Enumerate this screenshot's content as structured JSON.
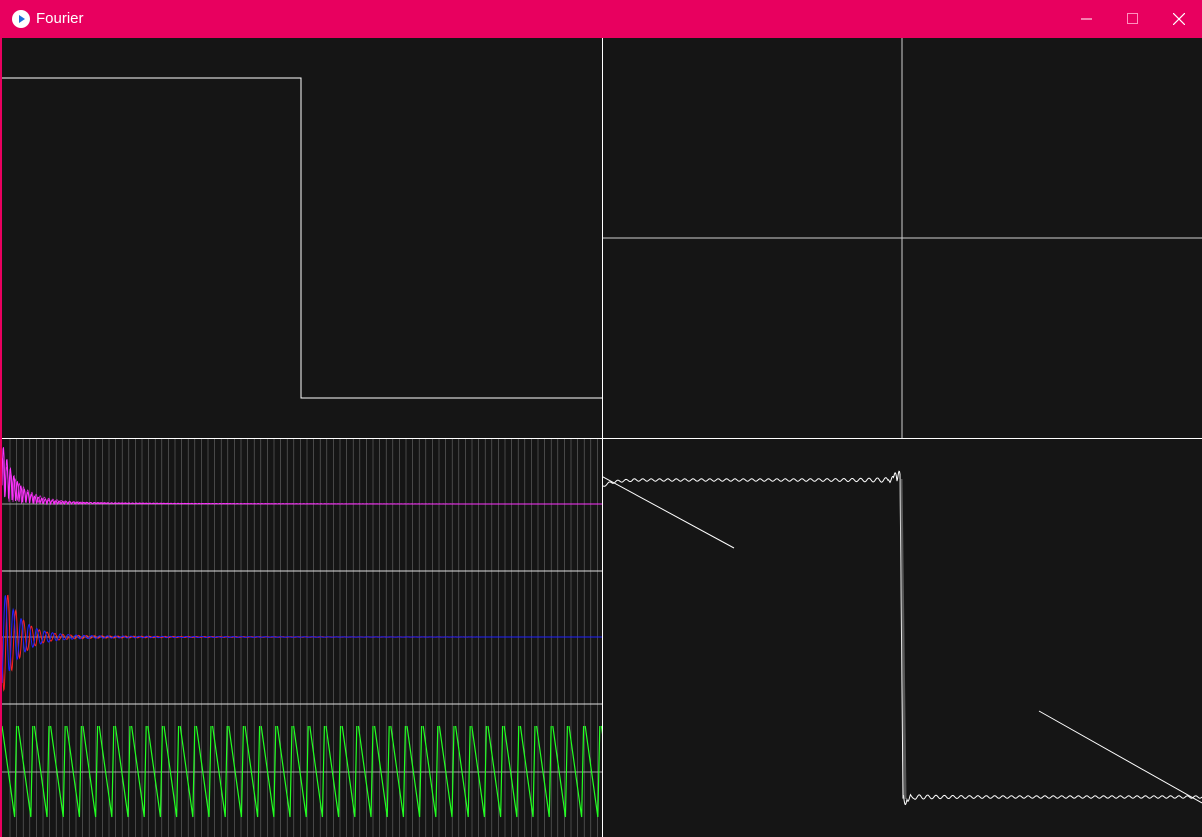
{
  "window": {
    "title": "Fourier",
    "app_icon": "play-circle-icon",
    "controls": [
      "minimize-icon",
      "maximize-icon",
      "close-icon"
    ],
    "titlebar_color": "#e8005f",
    "background_color": "#151515"
  },
  "panels": {
    "top_left": {
      "content": "square-wave-input",
      "line_color": "#ffffff"
    },
    "top_right": {
      "content": "crosshair-axes",
      "line_color": "#d0d0d0"
    },
    "bottom_left": {
      "content": "spectrum-plots",
      "magnitude_color": "#ff33ff",
      "real_color": "#ff2020",
      "imag_color": "#2020ff",
      "phase_color": "#22ff22",
      "harmonics": 90
    },
    "bottom_right": {
      "content": "reconstructed-square-wave",
      "line_color": "#ffffff"
    }
  }
}
